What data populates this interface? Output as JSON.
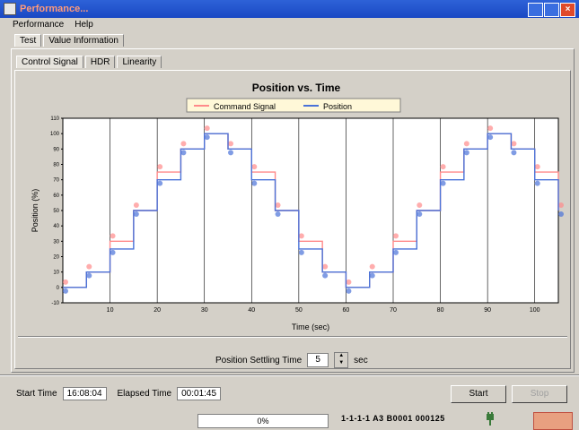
{
  "window": {
    "title": "Performance..."
  },
  "menu": [
    "Performance",
    "Help"
  ],
  "tabs_top": [
    "Test",
    "Value Information"
  ],
  "tabs_sub": [
    "Control Signal",
    "HDR",
    "Linearity"
  ],
  "chart_data": {
    "type": "line",
    "title": "Position vs. Time",
    "xlabel": "Time (sec)",
    "ylabel": "Position (%)",
    "xlim": [
      0,
      105
    ],
    "ylim": [
      -10,
      110
    ],
    "xticks": [
      10,
      20,
      30,
      40,
      50,
      60,
      70,
      80,
      90,
      100
    ],
    "yticks": [
      -10,
      0,
      10,
      20,
      30,
      40,
      50,
      60,
      70,
      80,
      90,
      100,
      110
    ],
    "legend": [
      "Command Signal",
      "Position"
    ],
    "series": [
      {
        "name": "Command Signal",
        "color": "#ff8a8a",
        "x": [
          0,
          5,
          10,
          15,
          20,
          25,
          30,
          35,
          40,
          45,
          50,
          55,
          60,
          65,
          70,
          75,
          80,
          85,
          90,
          95,
          100,
          105
        ],
        "y": [
          0,
          10,
          30,
          50,
          75,
          90,
          100,
          90,
          75,
          50,
          30,
          10,
          0,
          10,
          30,
          50,
          75,
          90,
          100,
          90,
          75,
          50
        ]
      },
      {
        "name": "Position",
        "color": "#4a72d8",
        "x": [
          0,
          5,
          10,
          15,
          20,
          25,
          30,
          35,
          40,
          45,
          50,
          55,
          60,
          65,
          70,
          75,
          80,
          85,
          90,
          95,
          100,
          105
        ],
        "y": [
          0,
          10,
          25,
          50,
          70,
          90,
          100,
          90,
          70,
          50,
          25,
          10,
          0,
          10,
          25,
          50,
          70,
          90,
          100,
          90,
          70,
          50
        ]
      }
    ]
  },
  "settling": {
    "label": "Position Settling Time",
    "value": "5",
    "unit": "sec"
  },
  "start_time": {
    "label": "Start Time",
    "value": "16:08:04"
  },
  "elapsed_time": {
    "label": "Elapsed Time",
    "value": "00:01:45"
  },
  "buttons": {
    "start": "Start",
    "stop": "Stop"
  },
  "status": {
    "progress_percent": "0%",
    "text": "1-1-1-1 A3 B0001 000125"
  }
}
